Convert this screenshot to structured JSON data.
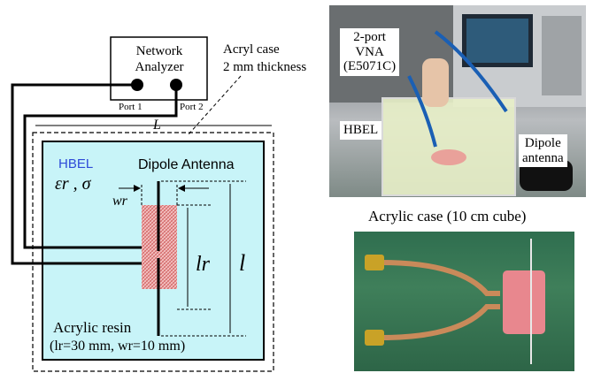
{
  "diagram": {
    "network_analyzer": {
      "line1": "Network",
      "line2": "Analyzer"
    },
    "port1": "Port 1",
    "port2": "Port 2",
    "acryl_case": {
      "line1": "Acryl case",
      "line2": "2 mm thickness"
    },
    "L_label": "L",
    "hbel": "HBEL",
    "eps_sigma": "εr , σ",
    "dipole_antenna": "Dipole Antenna",
    "wr": "wr",
    "lr": "lr",
    "l": "l",
    "acrylic_resin": "Acrylic resin",
    "acrylic_dims": "(lr=30 mm, wr=10 mm)",
    "colors": {
      "liquid": "#c8f4f8",
      "resin": "#ef9a9a",
      "line": "#000000",
      "hbel": "#2e4bd8"
    }
  },
  "photo_vna": {
    "vna_label": {
      "line1": "2-port",
      "line2": "VNA",
      "line3": "(E5071C)"
    },
    "hbel": "HBEL",
    "dipole": {
      "line1": "Dipole",
      "line2": "antenna"
    },
    "case_caption": "Acrylic case (10 cm cube)"
  }
}
